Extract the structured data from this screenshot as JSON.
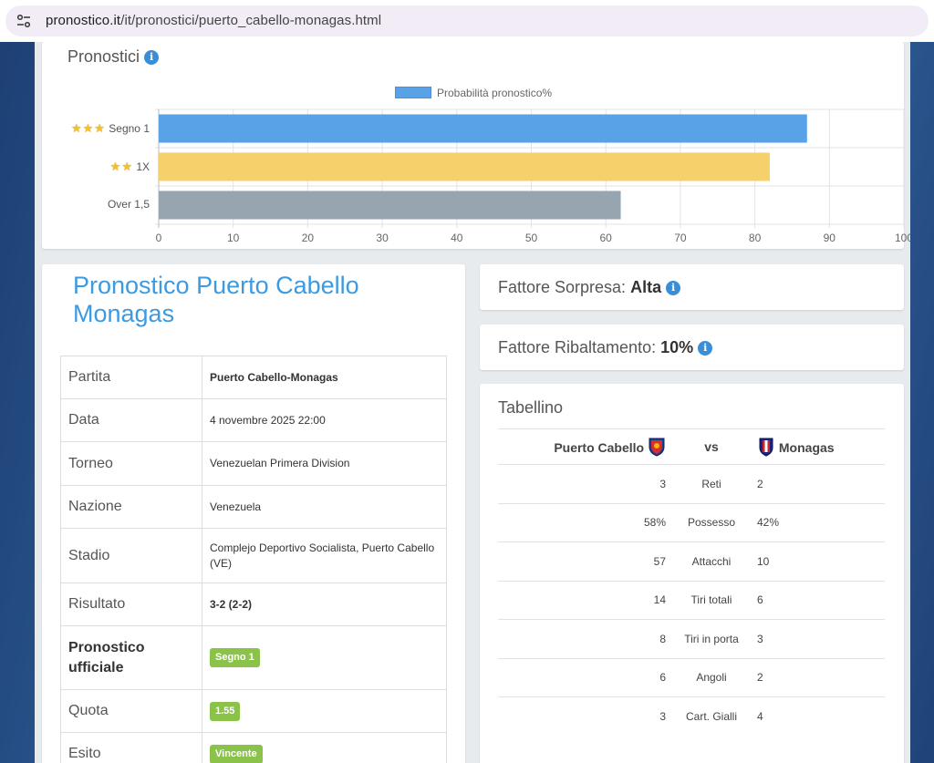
{
  "browser": {
    "url_domain": "pronostico.it",
    "url_path": "/it/pronostici/puerto_cabello-monagas.html"
  },
  "chart_card": {
    "title": "Pronostici"
  },
  "chart_data": {
    "type": "bar",
    "orientation": "horizontal",
    "categories": [
      "Segno 1",
      "1X",
      "Over 1,5"
    ],
    "category_stars": [
      3,
      2,
      0
    ],
    "series": [
      {
        "name": "Probabilità pronostico%",
        "values": [
          87,
          82,
          62
        ]
      }
    ],
    "bar_colors": [
      "#59a2e8",
      "#f5d06b",
      "#97a5b1"
    ],
    "xlim": [
      0,
      100
    ],
    "xticks": [
      "0",
      "10",
      "20",
      "30",
      "40",
      "50",
      "60",
      "70",
      "80",
      "90",
      "100"
    ],
    "grid": true,
    "legend_position": "top"
  },
  "match": {
    "title": "Pronostico Puerto Cabello Monagas",
    "rows": [
      {
        "key": "Partita",
        "value": "Puerto Cabello-Monagas"
      },
      {
        "key": "Data",
        "value": "4 novembre 2025 22:00"
      },
      {
        "key": "Torneo",
        "value": "Venezuelan Primera Division"
      },
      {
        "key": "Nazione",
        "value": "Venezuela"
      },
      {
        "key": "Stadio",
        "value": "Complejo Deportivo Socialista, Puerto Cabello (VE)"
      },
      {
        "key": "Risultato",
        "value": "3-2 (2-2)"
      },
      {
        "key": "Pronostico ufficiale",
        "value": "Segno 1"
      },
      {
        "key": "Quota",
        "value": "1.55"
      },
      {
        "key": "Esito",
        "value": "Vincente"
      }
    ]
  },
  "factors": {
    "sorpresa_label": "Fattore Sorpresa:",
    "sorpresa_value": "Alta",
    "ribaltamento_label": "Fattore Ribaltamento:",
    "ribaltamento_value": "10%"
  },
  "tabellino": {
    "title": "Tabellino",
    "home": "Puerto Cabello",
    "vs": "vs",
    "away": "Monagas",
    "rows": [
      {
        "home": "3",
        "label": "Reti",
        "away": "2"
      },
      {
        "home": "58%",
        "label": "Possesso",
        "away": "42%"
      },
      {
        "home": "57",
        "label": "Attacchi",
        "away": "10"
      },
      {
        "home": "14",
        "label": "Tiri totali",
        "away": "6"
      },
      {
        "home": "8",
        "label": "Tiri in porta",
        "away": "3"
      },
      {
        "home": "6",
        "label": "Angoli",
        "away": "2"
      },
      {
        "home": "3",
        "label": "Cart. Gialli",
        "away": "4"
      }
    ]
  },
  "colors": {
    "accent": "#3b9ae0",
    "badge": "#8bc34a",
    "info": "#3a8ed8"
  },
  "icons": [
    "site-settings-icon",
    "info-icon",
    "star-icon",
    "puerto-cabello-crest-icon",
    "monagas-crest-icon"
  ]
}
